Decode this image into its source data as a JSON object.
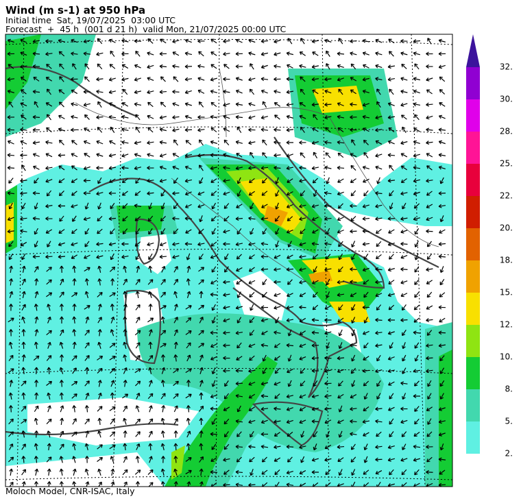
{
  "header": {
    "title": "Wind (m s-1) at 950 hPa",
    "initial_time": "Initial time  Sat, 19/07/2025  03:00 UTC",
    "forecast": "Forecast  +  45 h  (001 d 21 h)  valid Mon, 21/07/2025 00:00 UTC"
  },
  "colorbar": {
    "labels": [
      "2.",
      "5.",
      "8.",
      "10.",
      "12.",
      "15.",
      "18.",
      "20.",
      "22.",
      "25.",
      "28.",
      "30.",
      "32."
    ],
    "colors": [
      "#5ff0e2",
      "#42d8ae",
      "#14cc34",
      "#8fe412",
      "#f8e000",
      "#f0a200",
      "#e26200",
      "#d01e00",
      "#e8003c",
      "#ff1496",
      "#e000ea",
      "#9000d2"
    ],
    "extend_color": "#3c149c"
  },
  "footer": {
    "credit": "Moloch Model, CNR-ISAC, Italy"
  }
}
